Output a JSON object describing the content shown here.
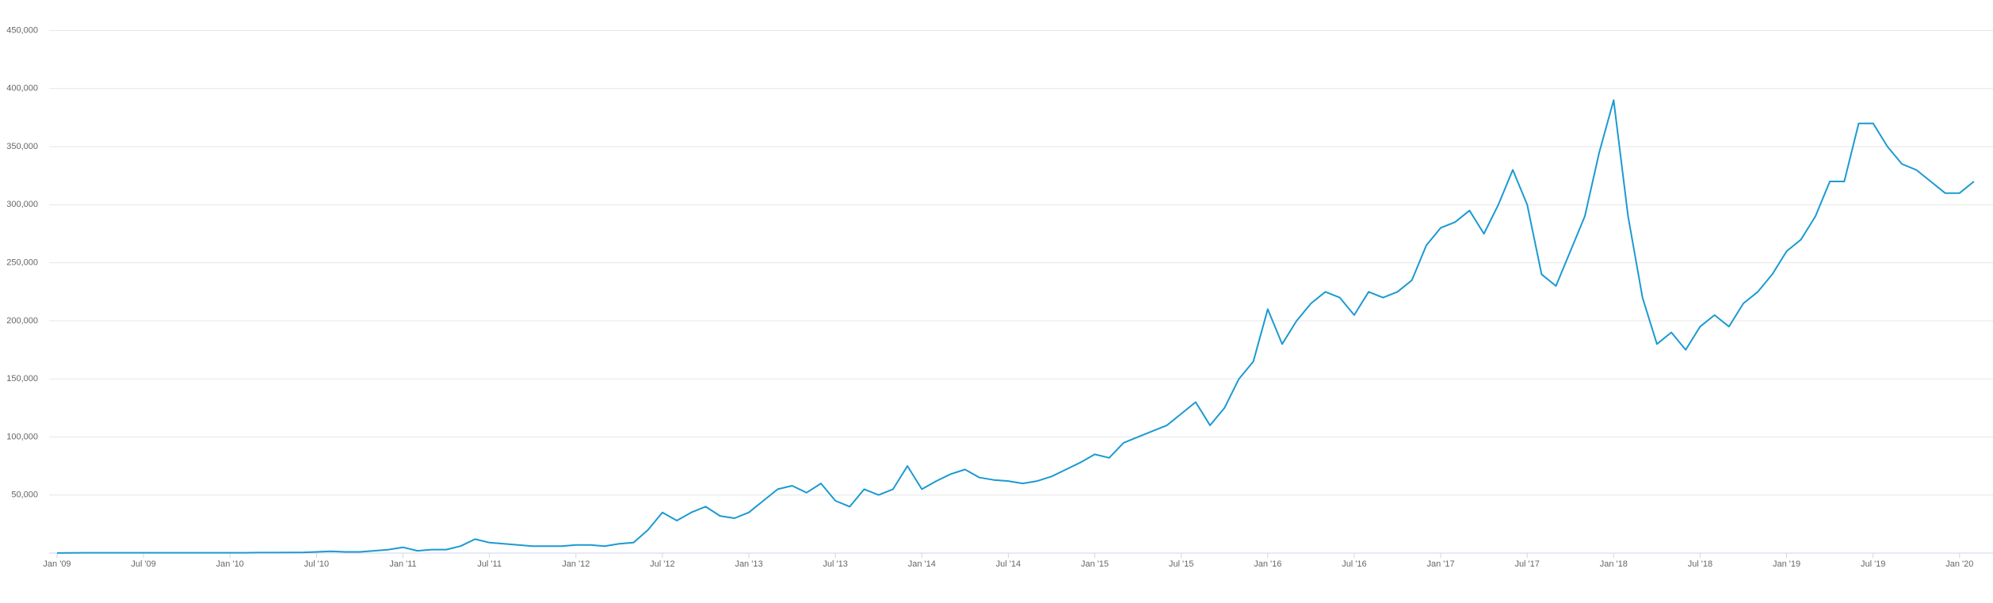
{
  "chart_data": {
    "type": "line",
    "color": "#1b9ad2",
    "grid": true,
    "x": [
      "2009-01",
      "2009-02",
      "2009-03",
      "2009-04",
      "2009-05",
      "2009-06",
      "2009-07",
      "2009-08",
      "2009-09",
      "2009-10",
      "2009-11",
      "2009-12",
      "2010-01",
      "2010-02",
      "2010-03",
      "2010-04",
      "2010-05",
      "2010-06",
      "2010-07",
      "2010-08",
      "2010-09",
      "2010-10",
      "2010-11",
      "2010-12",
      "2011-01",
      "2011-02",
      "2011-03",
      "2011-04",
      "2011-05",
      "2011-06",
      "2011-07",
      "2011-08",
      "2011-09",
      "2011-10",
      "2011-11",
      "2011-12",
      "2012-01",
      "2012-02",
      "2012-03",
      "2012-04",
      "2012-05",
      "2012-06",
      "2012-07",
      "2012-08",
      "2012-09",
      "2012-10",
      "2012-11",
      "2012-12",
      "2013-01",
      "2013-02",
      "2013-03",
      "2013-04",
      "2013-05",
      "2013-06",
      "2013-07",
      "2013-08",
      "2013-09",
      "2013-10",
      "2013-11",
      "2013-12",
      "2014-01",
      "2014-02",
      "2014-03",
      "2014-04",
      "2014-05",
      "2014-06",
      "2014-07",
      "2014-08",
      "2014-09",
      "2014-10",
      "2014-11",
      "2014-12",
      "2015-01",
      "2015-02",
      "2015-03",
      "2015-04",
      "2015-05",
      "2015-06",
      "2015-07",
      "2015-08",
      "2015-09",
      "2015-10",
      "2015-11",
      "2015-12",
      "2016-01",
      "2016-02",
      "2016-03",
      "2016-04",
      "2016-05",
      "2016-06",
      "2016-07",
      "2016-08",
      "2016-09",
      "2016-10",
      "2016-11",
      "2016-12",
      "2017-01",
      "2017-02",
      "2017-03",
      "2017-04",
      "2017-05",
      "2017-06",
      "2017-07",
      "2017-08",
      "2017-09",
      "2017-10",
      "2017-11",
      "2017-12",
      "2018-01",
      "2018-02",
      "2018-03",
      "2018-04",
      "2018-05",
      "2018-06",
      "2018-07",
      "2018-08",
      "2018-09",
      "2018-10",
      "2018-11",
      "2018-12",
      "2019-01",
      "2019-02",
      "2019-03",
      "2019-04",
      "2019-05",
      "2019-06",
      "2019-07",
      "2019-08",
      "2019-09",
      "2019-10",
      "2019-11",
      "2019-12",
      "2020-01",
      "2020-02"
    ],
    "values": [
      100,
      200,
      300,
      300,
      300,
      300,
      300,
      300,
      300,
      300,
      300,
      300,
      300,
      300,
      400,
      400,
      500,
      500,
      1000,
      1500,
      1000,
      1000,
      2000,
      3000,
      5000,
      2000,
      3000,
      3000,
      6000,
      12000,
      9000,
      8000,
      7000,
      6000,
      6000,
      6000,
      7000,
      7000,
      6000,
      8000,
      9000,
      20000,
      35000,
      28000,
      35000,
      40000,
      32000,
      30000,
      35000,
      45000,
      55000,
      58000,
      52000,
      60000,
      45000,
      40000,
      55000,
      50000,
      55000,
      75000,
      55000,
      62000,
      68000,
      72000,
      65000,
      63000,
      62000,
      60000,
      62000,
      66000,
      72000,
      78000,
      85000,
      82000,
      95000,
      100000,
      105000,
      110000,
      120000,
      130000,
      110000,
      125000,
      150000,
      165000,
      210000,
      180000,
      200000,
      215000,
      225000,
      220000,
      205000,
      225000,
      220000,
      225000,
      235000,
      265000,
      280000,
      285000,
      295000,
      275000,
      300000,
      330000,
      300000,
      240000,
      230000,
      260000,
      290000,
      345000,
      390000,
      290000,
      220000,
      180000,
      190000,
      175000,
      195000,
      205000,
      195000,
      215000,
      225000,
      240000,
      260000,
      270000,
      290000,
      320000,
      320000,
      370000,
      370000,
      350000,
      335000,
      330000,
      320000,
      310000,
      310000,
      320000
    ],
    "xlim": [
      "2009-01",
      "2020-02"
    ],
    "xticks": [
      {
        "value": "2009-01",
        "label": "Jan '09"
      },
      {
        "value": "2009-07",
        "label": "Jul '09"
      },
      {
        "value": "2010-01",
        "label": "Jan '10"
      },
      {
        "value": "2010-07",
        "label": "Jul '10"
      },
      {
        "value": "2011-01",
        "label": "Jan '11"
      },
      {
        "value": "2011-07",
        "label": "Jul '11"
      },
      {
        "value": "2012-01",
        "label": "Jan '12"
      },
      {
        "value": "2012-07",
        "label": "Jul '12"
      },
      {
        "value": "2013-01",
        "label": "Jan '13"
      },
      {
        "value": "2013-07",
        "label": "Jul '13"
      },
      {
        "value": "2014-01",
        "label": "Jan '14"
      },
      {
        "value": "2014-07",
        "label": "Jul '14"
      },
      {
        "value": "2015-01",
        "label": "Jan '15"
      },
      {
        "value": "2015-07",
        "label": "Jul '15"
      },
      {
        "value": "2016-01",
        "label": "Jan '16"
      },
      {
        "value": "2016-07",
        "label": "Jul '16"
      },
      {
        "value": "2017-01",
        "label": "Jan '17"
      },
      {
        "value": "2017-07",
        "label": "Jul '17"
      },
      {
        "value": "2018-01",
        "label": "Jan '18"
      },
      {
        "value": "2018-07",
        "label": "Jul '18"
      },
      {
        "value": "2019-01",
        "label": "Jan '19"
      },
      {
        "value": "2019-07",
        "label": "Jul '19"
      },
      {
        "value": "2020-01",
        "label": "Jan '20"
      }
    ],
    "ylim": [
      0,
      450000
    ],
    "yticks": [
      {
        "value": 50000,
        "label": "50,000"
      },
      {
        "value": 100000,
        "label": "100,000"
      },
      {
        "value": 150000,
        "label": "150,000"
      },
      {
        "value": 200000,
        "label": "200,000"
      },
      {
        "value": 250000,
        "label": "250,000"
      },
      {
        "value": 300000,
        "label": "300,000"
      },
      {
        "value": 350000,
        "label": "350,000"
      },
      {
        "value": 400000,
        "label": "400,000"
      },
      {
        "value": 450000,
        "label": "450,000"
      }
    ]
  }
}
